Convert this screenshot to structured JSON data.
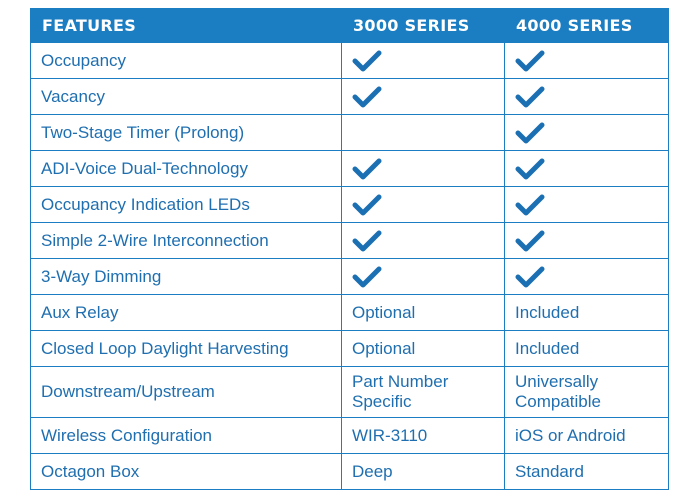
{
  "header": {
    "features": "FEATURES",
    "series_3000": "3000 SERIES",
    "series_4000": "4000 SERIES"
  },
  "colors": {
    "header_bg": "#1b7ec2",
    "text": "#1f6fb0",
    "check": "#1b6fb3"
  },
  "rows": [
    {
      "feature": "Occupancy",
      "s3000": {
        "check": true,
        "text": ""
      },
      "s4000": {
        "check": true,
        "text": ""
      }
    },
    {
      "feature": "Vacancy",
      "s3000": {
        "check": true,
        "text": ""
      },
      "s4000": {
        "check": true,
        "text": ""
      }
    },
    {
      "feature": "Two-Stage Timer (Prolong)",
      "s3000": {
        "check": false,
        "text": ""
      },
      "s4000": {
        "check": true,
        "text": ""
      }
    },
    {
      "feature": "ADI-Voice Dual-Technology",
      "s3000": {
        "check": true,
        "text": ""
      },
      "s4000": {
        "check": true,
        "text": ""
      }
    },
    {
      "feature": "Occupancy Indication LEDs",
      "s3000": {
        "check": true,
        "text": ""
      },
      "s4000": {
        "check": true,
        "text": ""
      }
    },
    {
      "feature": "Simple 2-Wire Interconnection",
      "s3000": {
        "check": true,
        "text": ""
      },
      "s4000": {
        "check": true,
        "text": ""
      }
    },
    {
      "feature": "3-Way Dimming",
      "s3000": {
        "check": true,
        "text": ""
      },
      "s4000": {
        "check": true,
        "text": ""
      }
    },
    {
      "feature": "Aux Relay",
      "s3000": {
        "check": false,
        "text": "Optional"
      },
      "s4000": {
        "check": false,
        "text": "Included"
      }
    },
    {
      "feature": "Closed Loop Daylight Harvesting",
      "s3000": {
        "check": false,
        "text": "Optional"
      },
      "s4000": {
        "check": false,
        "text": "Included"
      }
    },
    {
      "feature": "Downstream/Upstream",
      "s3000": {
        "check": false,
        "text": "Part Number\nSpecific"
      },
      "s4000": {
        "check": false,
        "text": "Universally\nCompatible"
      }
    },
    {
      "feature": "Wireless Configuration",
      "s3000": {
        "check": false,
        "text": "WIR-3110"
      },
      "s4000": {
        "check": false,
        "text": "iOS or Android"
      }
    },
    {
      "feature": "Octagon Box",
      "s3000": {
        "check": false,
        "text": "Deep"
      },
      "s4000": {
        "check": false,
        "text": "Standard"
      }
    }
  ]
}
